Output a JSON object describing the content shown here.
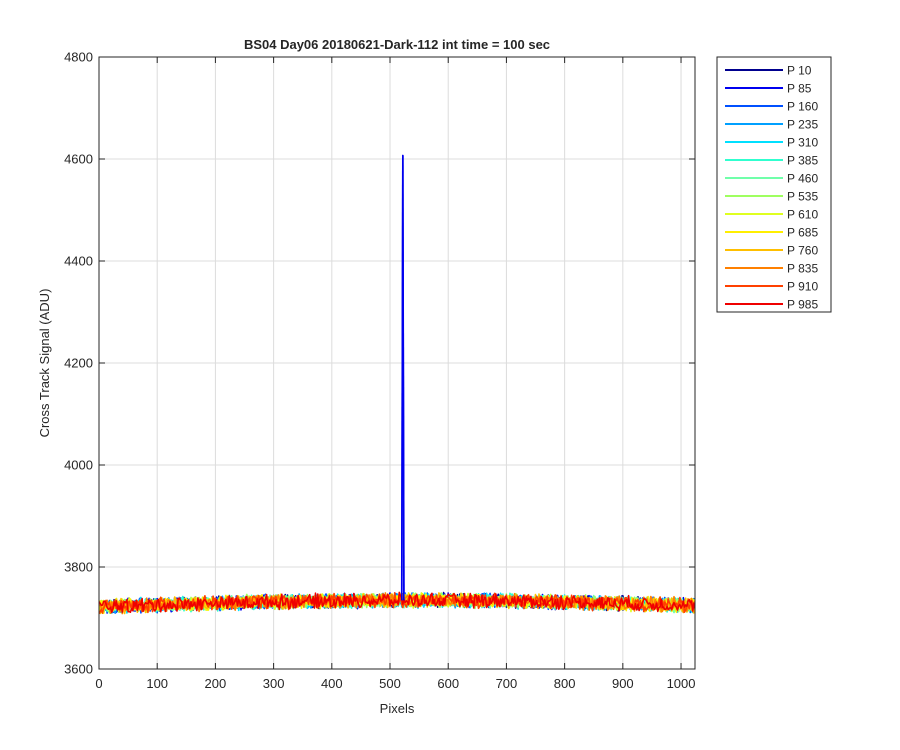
{
  "chart_data": {
    "type": "line",
    "title": "BS04 Day06 20180621-Dark-112 int time = 100 sec",
    "xlabel": "Pixels",
    "ylabel": "Cross Track Signal (ADU)",
    "xlim": [
      0,
      1024
    ],
    "ylim": [
      3600,
      4800
    ],
    "xticks": [
      0,
      100,
      200,
      300,
      400,
      500,
      600,
      700,
      800,
      900,
      1000
    ],
    "yticks": [
      3600,
      3800,
      4000,
      4200,
      4400,
      4600,
      4800
    ],
    "grid": true,
    "legend_position": "outside-right",
    "noise_band": {
      "baseline_left": 3722,
      "baseline_mid": 3733,
      "baseline_right": 3728,
      "half_width": 12
    },
    "spike": {
      "series": "P 85",
      "x": 522,
      "y": 4607
    },
    "series": [
      {
        "name": "P 10",
        "color": "#00008f"
      },
      {
        "name": "P 85",
        "color": "#0000ef"
      },
      {
        "name": "P 160",
        "color": "#0050ff"
      },
      {
        "name": "P 235",
        "color": "#00a0ff"
      },
      {
        "name": "P 310",
        "color": "#00e0ff"
      },
      {
        "name": "P 385",
        "color": "#30ffcf"
      },
      {
        "name": "P 460",
        "color": "#70ffaa"
      },
      {
        "name": "P 535",
        "color": "#9fff60"
      },
      {
        "name": "P 610",
        "color": "#dfff20"
      },
      {
        "name": "P 685",
        "color": "#ffef00"
      },
      {
        "name": "P 760",
        "color": "#ffbf00"
      },
      {
        "name": "P 835",
        "color": "#ff8000"
      },
      {
        "name": "P 910",
        "color": "#ff4000"
      },
      {
        "name": "P 985",
        "color": "#ef0000"
      }
    ]
  }
}
